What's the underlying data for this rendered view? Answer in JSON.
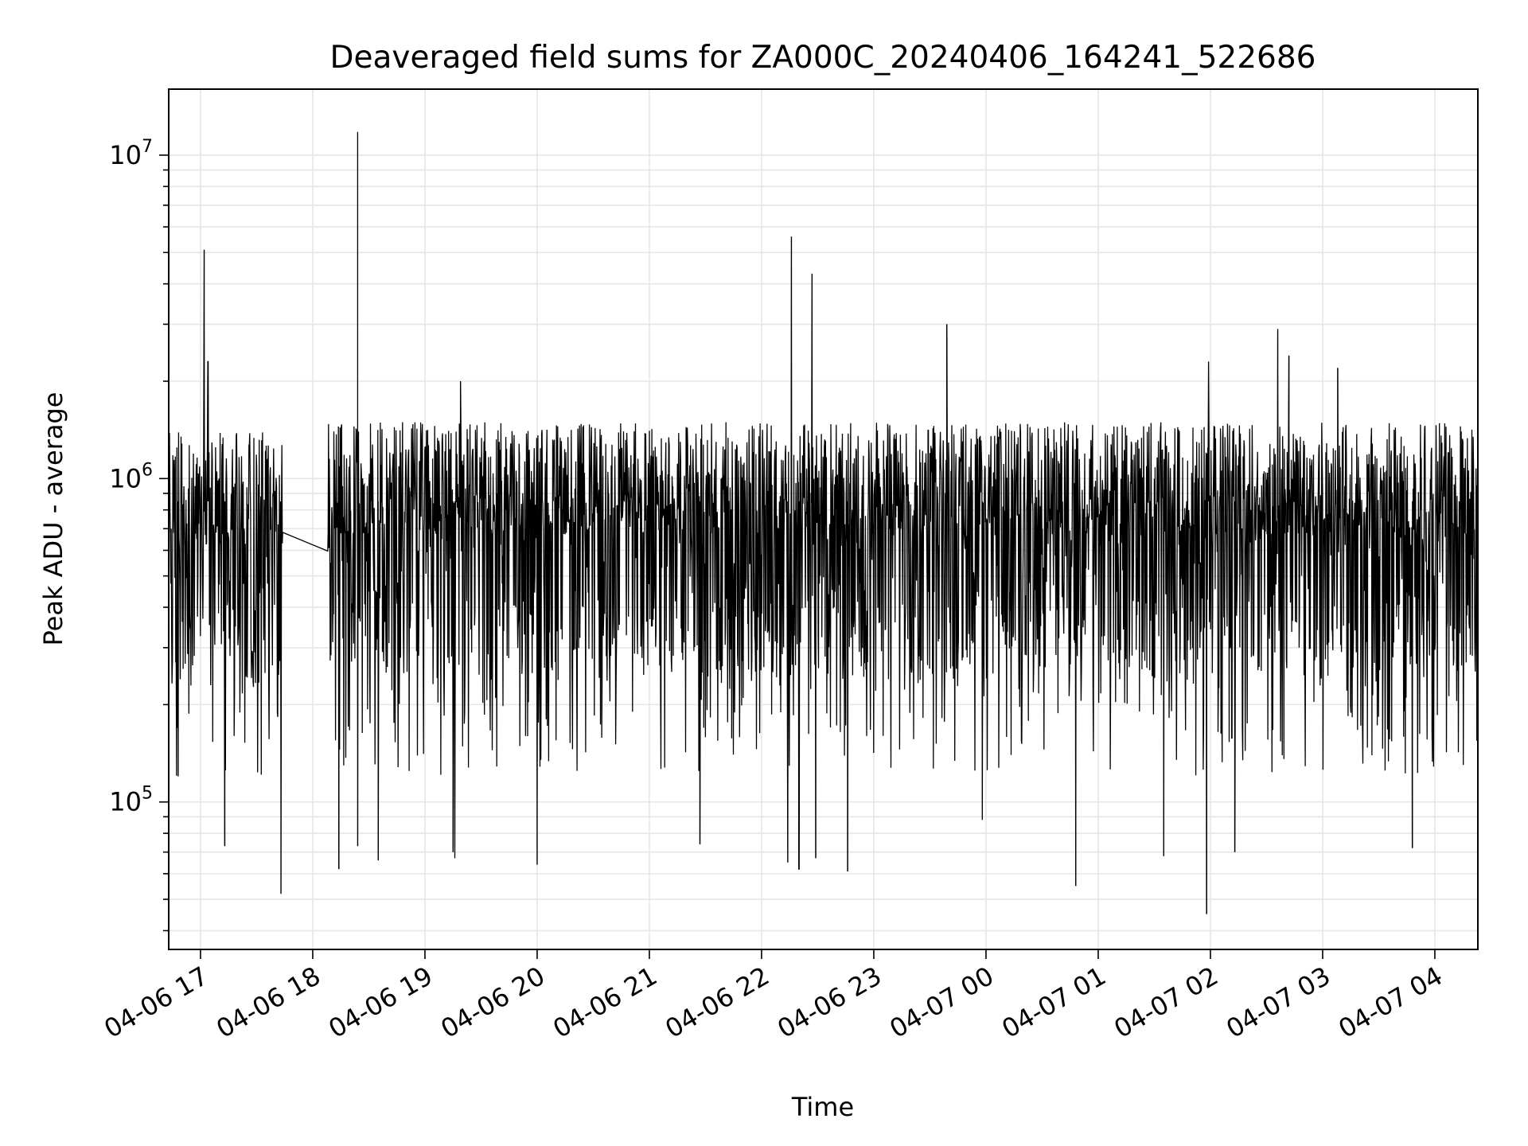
{
  "chart_data": {
    "type": "line",
    "title": "Deaveraged field sums for ZA000C_20240406_164241_522686",
    "xlabel": "Time",
    "ylabel": "Peak ADU - average",
    "yscale": "log",
    "ylim": [
      35000,
      16000000
    ],
    "xlim": [
      "2024-04-06 16:43",
      "2024-04-07 04:23"
    ],
    "grid": true,
    "line_color": "#000000",
    "x_tick_labels": [
      "04-06 17",
      "04-06 18",
      "04-06 19",
      "04-06 20",
      "04-06 21",
      "04-06 22",
      "04-06 23",
      "04-07 00",
      "04-07 01",
      "04-07 02",
      "04-07 03",
      "04-07 04"
    ],
    "x_tick_times": [
      "2024-04-06 17:00",
      "2024-04-06 18:00",
      "2024-04-06 19:00",
      "2024-04-06 20:00",
      "2024-04-06 21:00",
      "2024-04-06 22:00",
      "2024-04-06 23:00",
      "2024-04-07 00:00",
      "2024-04-07 01:00",
      "2024-04-07 02:00",
      "2024-04-07 03:00",
      "2024-04-07 04:00"
    ],
    "y_ticks": [
      {
        "value": 100000,
        "base": "10",
        "exp": "5"
      },
      {
        "value": 1000000,
        "base": "10",
        "exp": "6"
      },
      {
        "value": 10000000,
        "base": "10",
        "exp": "7"
      }
    ],
    "series": [
      {
        "segments": [
          {
            "start": "2024-04-06 16:43",
            "end": "2024-04-06 17:44",
            "median": 800000
          },
          {
            "start": "2024-04-06 18:08",
            "end": "2024-04-07 04:23",
            "median": 850000
          }
        ],
        "gap_line": {
          "from": [
            "2024-04-06 17:44",
            820000
          ],
          "to": [
            "2024-04-06 18:08",
            810000
          ]
        },
        "typical_low": 120000,
        "typical_high": 1700000,
        "peaks": [
          {
            "x": "2024-04-06 17:02",
            "y": 5100000
          },
          {
            "x": "2024-04-06 17:04",
            "y": 2300000
          },
          {
            "x": "2024-04-06 18:24",
            "y": 11800000
          },
          {
            "x": "2024-04-06 19:19",
            "y": 2000000
          },
          {
            "x": "2024-04-06 22:16",
            "y": 5600000
          },
          {
            "x": "2024-04-06 22:27",
            "y": 4300000
          },
          {
            "x": "2024-04-06 23:39",
            "y": 3000000
          },
          {
            "x": "2024-04-07 01:59",
            "y": 2300000
          },
          {
            "x": "2024-04-07 02:36",
            "y": 2900000
          },
          {
            "x": "2024-04-07 02:42",
            "y": 2400000
          },
          {
            "x": "2024-04-07 03:08",
            "y": 2200000
          }
        ],
        "dips": [
          {
            "x": "2024-04-06 16:48",
            "y": 120000
          },
          {
            "x": "2024-04-06 17:13",
            "y": 73000
          },
          {
            "x": "2024-04-06 17:43",
            "y": 52000
          },
          {
            "x": "2024-04-06 18:14",
            "y": 62000
          },
          {
            "x": "2024-04-06 18:24",
            "y": 73000
          },
          {
            "x": "2024-04-06 18:35",
            "y": 66000
          },
          {
            "x": "2024-04-06 19:15",
            "y": 70000
          },
          {
            "x": "2024-04-06 19:16",
            "y": 67000
          },
          {
            "x": "2024-04-06 20:00",
            "y": 64000
          },
          {
            "x": "2024-04-06 21:27",
            "y": 74000
          },
          {
            "x": "2024-04-06 22:14",
            "y": 65000
          },
          {
            "x": "2024-04-06 22:20",
            "y": 62000
          },
          {
            "x": "2024-04-06 22:29",
            "y": 67000
          },
          {
            "x": "2024-04-06 22:46",
            "y": 61000
          },
          {
            "x": "2024-04-06 23:58",
            "y": 88000
          },
          {
            "x": "2024-04-07 00:48",
            "y": 55000
          },
          {
            "x": "2024-04-07 01:35",
            "y": 68000
          },
          {
            "x": "2024-04-07 01:58",
            "y": 45000
          },
          {
            "x": "2024-04-07 02:13",
            "y": 70000
          },
          {
            "x": "2024-04-07 03:48",
            "y": 72000
          }
        ]
      }
    ]
  }
}
